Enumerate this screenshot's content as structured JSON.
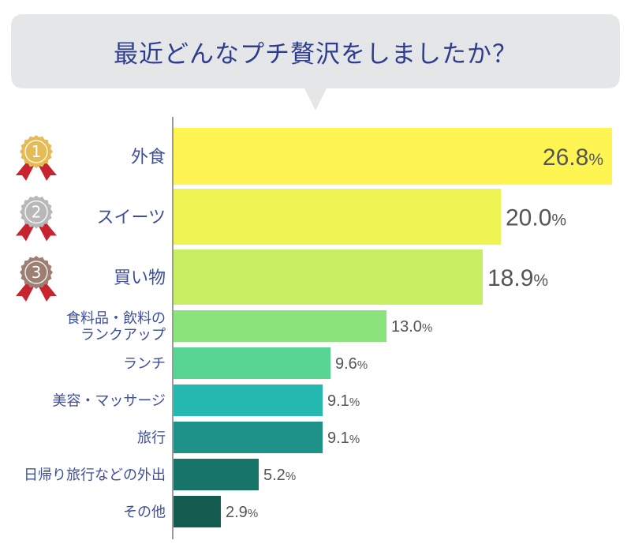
{
  "chart_data": {
    "type": "bar",
    "orientation": "horizontal",
    "title": "最近どんなプチ贅沢をしましたか？",
    "categories": [
      "外食",
      "スイーツ",
      "買い物",
      "食料品・飲料の\nランクアップ",
      "ランチ",
      "美容・マッサージ",
      "旅行",
      "日帰り旅行などの外出",
      "その他"
    ],
    "values": [
      26.8,
      20.0,
      18.9,
      13.0,
      9.6,
      9.1,
      9.1,
      5.2,
      2.9
    ],
    "value_labels": [
      "26.8",
      "20.0",
      "18.9",
      "13.0",
      "9.6",
      "9.1",
      "9.1",
      "5.2",
      "2.9"
    ],
    "unit": "%",
    "xlim": [
      0,
      26.8
    ],
    "grid": false,
    "bar_colors": [
      "#fff552",
      "#eef552",
      "#c8ee63",
      "#8ae37b",
      "#58d592",
      "#25b8b0",
      "#1e9289",
      "#177468",
      "#135c4f"
    ],
    "rank_medals": [
      {
        "rank": "1",
        "color": "#e5bb55"
      },
      {
        "rank": "2",
        "color": "#b8b8b8"
      },
      {
        "rank": "3",
        "color": "#9c7e72"
      }
    ],
    "ribbon_color": "#c7242f"
  }
}
